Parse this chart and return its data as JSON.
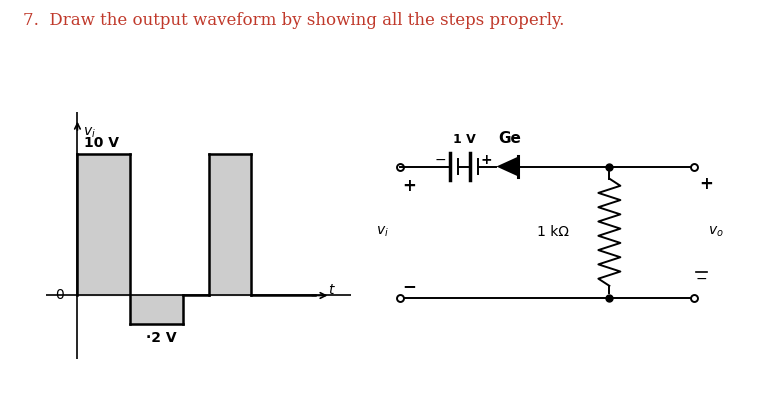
{
  "title": "7.  Draw the output waveform by showing all the steps properly.",
  "title_color": "#c0392b",
  "title_fontsize": 12,
  "bg_color": "#ffffff",
  "waveform": {
    "label_vi": "$v_i$",
    "label_10V": "10 V",
    "label_2V": "2 V",
    "label_t": "$t$",
    "label_0": "0"
  },
  "circuit": {
    "battery_label": "1 V",
    "diode_label": "Ge",
    "resistor_label": "1 kΩ",
    "vi_label": "$v_i$",
    "vo_label": "$v_o$"
  }
}
